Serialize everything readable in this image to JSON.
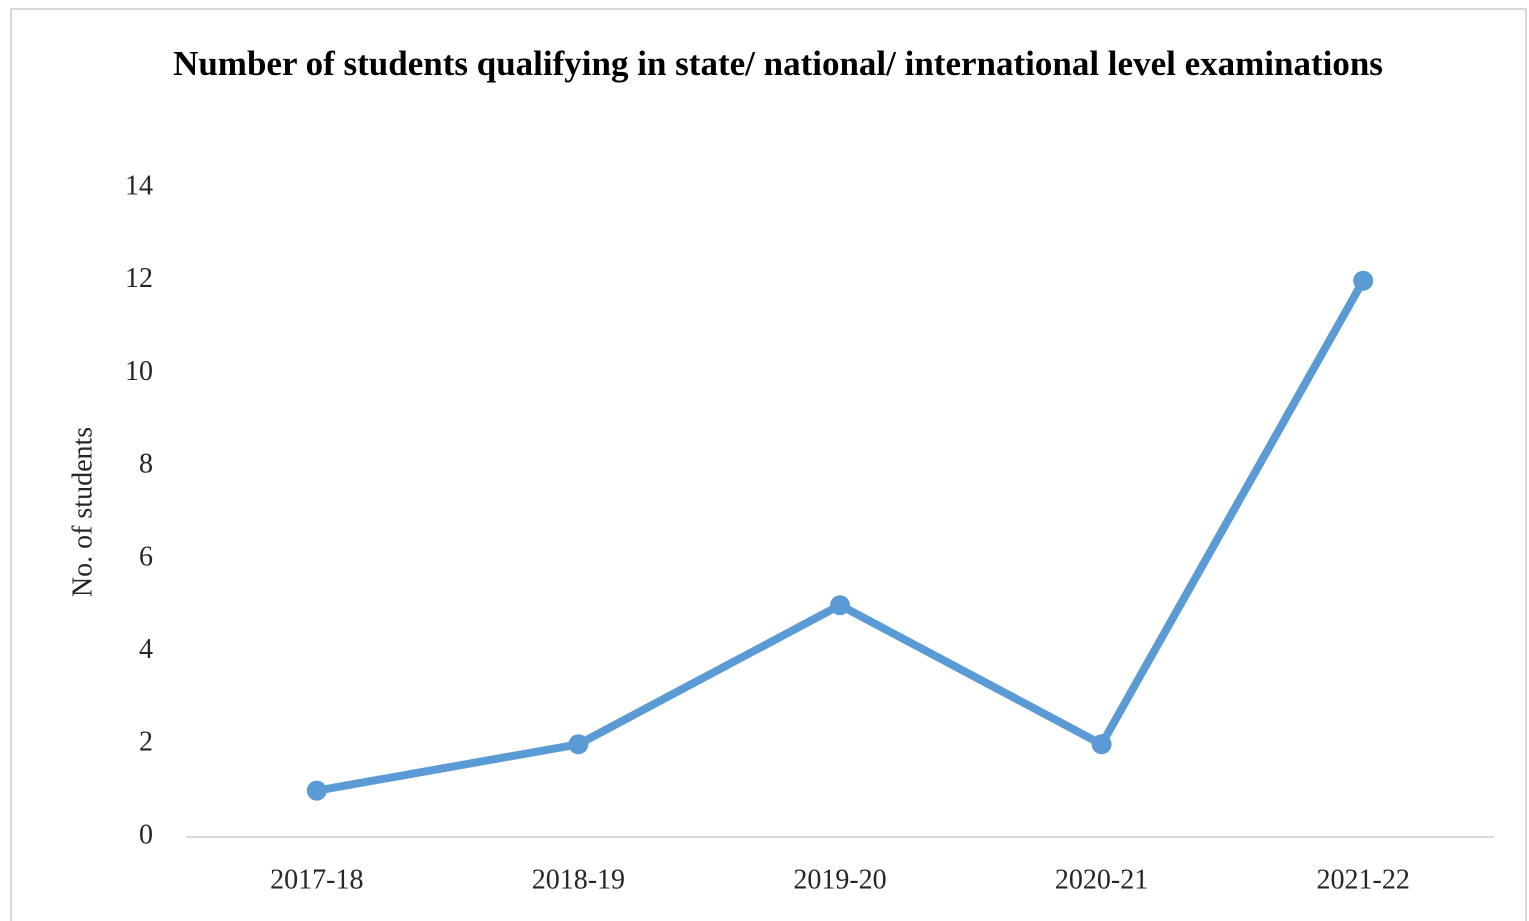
{
  "chart_data": {
    "type": "line",
    "title": "Number of students qualifying in state/ national/ international level examinations",
    "y_label": "No. of students",
    "categories": [
      "2017-18",
      "2018-19",
      "2019-20",
      "2020-21",
      "2021-22"
    ],
    "series": [
      {
        "name": "No. of students",
        "color": "#5b9bd5",
        "values": [
          1,
          2,
          5,
          2,
          12
        ]
      }
    ],
    "ylim": [
      0,
      14
    ],
    "yticks": [
      0,
      2,
      4,
      6,
      8,
      10,
      12,
      14
    ],
    "grid": false
  }
}
